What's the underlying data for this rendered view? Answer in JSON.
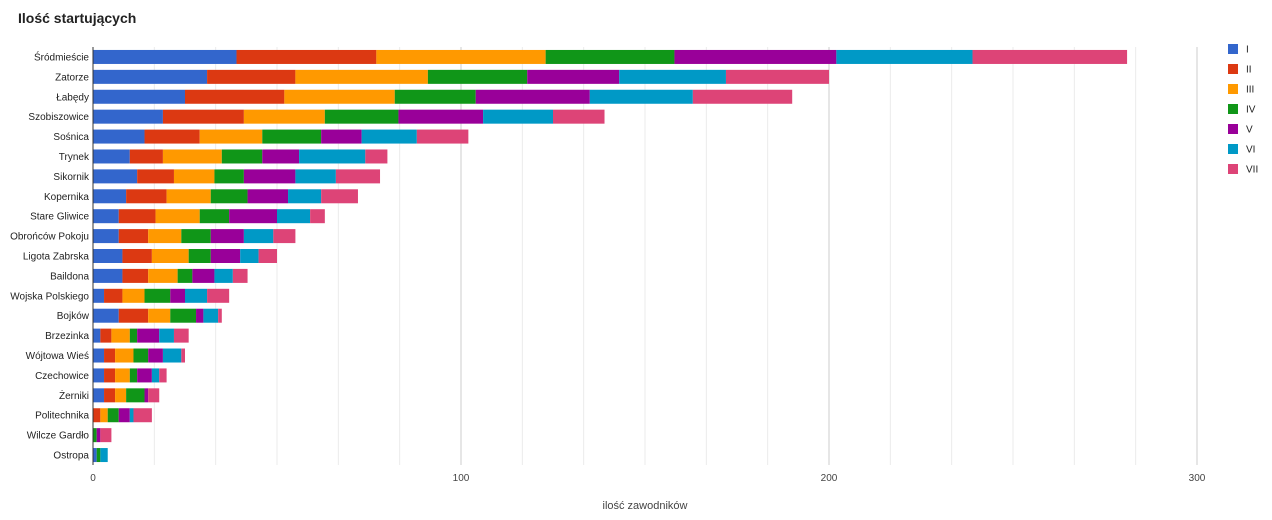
{
  "chart_data": {
    "type": "bar",
    "orientation": "horizontal",
    "stacked": true,
    "title": "Ilość startujących",
    "xlabel": "ilość zawodników",
    "ylabel": "",
    "xlim": [
      0,
      300
    ],
    "x_ticks": [
      0,
      100,
      200,
      300
    ],
    "grid": true,
    "legend_position": "right",
    "categories": [
      "Śródmieście",
      "Zatorze",
      "Łabędy",
      "Szobiszowice",
      "Sośnica",
      "Trynek",
      "Sikornik",
      "Kopernika",
      "Stare Gliwice",
      "Obrońców Pokoju",
      "Ligota Zabrska",
      "Baildona",
      "Wojska Polskiego",
      "Bojków",
      "Brzezinka",
      "Wójtowa Wieś",
      "Czechowice",
      "Żerniki",
      "Politechnika",
      "Wilcze Gardło",
      "Ostropa"
    ],
    "series": [
      {
        "name": "I",
        "color": "#3366cc",
        "values": [
          39,
          31,
          25,
          19,
          14,
          10,
          12,
          9,
          7,
          7,
          8,
          8,
          3,
          7,
          2,
          3,
          3,
          3,
          0,
          0,
          1
        ]
      },
      {
        "name": "II",
        "color": "#dc3912",
        "values": [
          38,
          24,
          27,
          22,
          15,
          9,
          10,
          11,
          10,
          8,
          8,
          7,
          5,
          8,
          3,
          3,
          3,
          3,
          2,
          0,
          0
        ]
      },
      {
        "name": "III",
        "color": "#ff9900",
        "values": [
          46,
          36,
          30,
          22,
          17,
          16,
          11,
          12,
          12,
          9,
          10,
          8,
          6,
          6,
          5,
          5,
          4,
          3,
          2,
          0,
          0
        ]
      },
      {
        "name": "IV",
        "color": "#109618",
        "values": [
          35,
          27,
          22,
          20,
          16,
          11,
          8,
          10,
          8,
          8,
          6,
          4,
          7,
          7,
          2,
          4,
          2,
          5,
          3,
          1,
          1
        ]
      },
      {
        "name": "V",
        "color": "#990099",
        "values": [
          44,
          25,
          31,
          23,
          11,
          10,
          14,
          11,
          13,
          9,
          8,
          6,
          4,
          2,
          6,
          4,
          4,
          1,
          3,
          1,
          0
        ]
      },
      {
        "name": "VI",
        "color": "#0099c6",
        "values": [
          37,
          29,
          28,
          19,
          15,
          18,
          11,
          9,
          9,
          8,
          5,
          5,
          6,
          4,
          4,
          5,
          2,
          0,
          1,
          0,
          2
        ]
      },
      {
        "name": "VII",
        "color": "#dd4477",
        "values": [
          42,
          28,
          27,
          14,
          14,
          6,
          12,
          10,
          4,
          6,
          5,
          4,
          6,
          1,
          4,
          1,
          2,
          3,
          5,
          3,
          0
        ]
      }
    ]
  }
}
